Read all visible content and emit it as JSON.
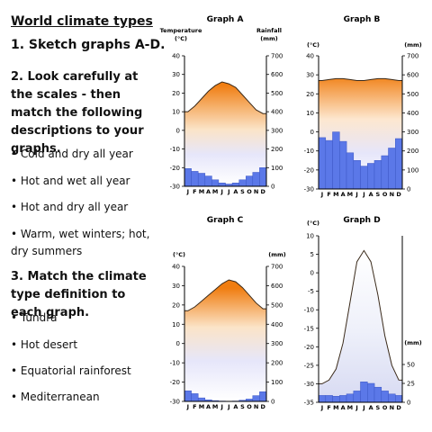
{
  "left": {
    "title": "World climate types",
    "step1": "1. Sketch graphs A-D.",
    "step2": "2. Look carefully at the scales - then match the following descriptions to your graphs.",
    "descriptions": [
      "• Cold and dry all year",
      "• Hot and wet all year",
      "• Hot and dry all year",
      "• Warm, wet winters; hot, dry summers"
    ],
    "step3": "3. Match the climate type definition to each graph.",
    "types": [
      "• Tundra",
      "• Hot desert",
      "• Equatorial rainforest",
      "• Mediterranean"
    ]
  },
  "chart_data": [
    {
      "type": "area",
      "title": "Graph A",
      "ylabel": "Temperature (°C)",
      "y2label": "Rainfall (mm)",
      "categories": [
        "J",
        "F",
        "M",
        "A",
        "M",
        "J",
        "J",
        "A",
        "S",
        "O",
        "N",
        "D"
      ],
      "ylim": [
        -30,
        40
      ],
      "y2lim": [
        0,
        700
      ],
      "y_ticks": [
        "40",
        "30",
        "20",
        "10",
        "0",
        "-10",
        "-20",
        "-30"
      ],
      "y2_ticks": [
        "700",
        "600",
        "500",
        "400",
        "300",
        "200",
        "100",
        "0"
      ],
      "series": [
        {
          "kind": "temperature",
          "values": [
            10,
            13,
            17,
            21,
            24,
            26,
            25,
            23,
            19,
            15,
            11,
            9
          ]
        },
        {
          "kind": "rainfall",
          "values": [
            95,
            80,
            70,
            55,
            35,
            18,
            12,
            18,
            35,
            55,
            75,
            100
          ]
        }
      ]
    },
    {
      "type": "area",
      "title": "Graph B",
      "ylabel": "(°C)",
      "y2label": "(mm)",
      "categories": [
        "J",
        "F",
        "M",
        "A",
        "M",
        "J",
        "J",
        "A",
        "S",
        "O",
        "N",
        "D"
      ],
      "ylim": [
        -30,
        40
      ],
      "y2lim": [
        0,
        700
      ],
      "y_ticks": [
        "40",
        "30",
        "20",
        "10",
        "0",
        "-10",
        "-20",
        "-30"
      ],
      "y2_ticks": [
        "700",
        "600",
        "500",
        "400",
        "300",
        "200",
        "100",
        "0"
      ],
      "series": [
        {
          "kind": "temperature",
          "values": [
            27,
            27.5,
            28,
            28,
            27.5,
            27,
            27,
            27.5,
            28,
            28,
            27.5,
            27
          ]
        },
        {
          "kind": "rainfall",
          "values": [
            270,
            255,
            300,
            250,
            190,
            150,
            120,
            135,
            150,
            175,
            215,
            265
          ]
        }
      ]
    },
    {
      "type": "area",
      "title": "Graph C",
      "ylabel": "(°C)",
      "y2label": "(mm)",
      "categories": [
        "J",
        "F",
        "M",
        "A",
        "M",
        "J",
        "J",
        "A",
        "S",
        "O",
        "N",
        "D"
      ],
      "ylim": [
        -30,
        40
      ],
      "y2lim": [
        0,
        700
      ],
      "y_ticks": [
        "40",
        "30",
        "20",
        "10",
        "0",
        "-10",
        "-20",
        "-30"
      ],
      "y2_ticks": [
        "700",
        "600",
        "500",
        "400",
        "300",
        "200",
        "100",
        "0"
      ],
      "series": [
        {
          "kind": "temperature",
          "values": [
            17,
            19,
            22,
            25,
            28,
            31,
            33,
            32,
            29,
            25,
            21,
            18
          ]
        },
        {
          "kind": "rainfall",
          "values": [
            55,
            40,
            18,
            8,
            4,
            2,
            1,
            2,
            6,
            12,
            30,
            50
          ]
        }
      ]
    },
    {
      "type": "area",
      "title": "Graph D",
      "ylabel": "(°C)",
      "y2label": "(mm)",
      "categories": [
        "J",
        "F",
        "M",
        "A",
        "M",
        "J",
        "J",
        "A",
        "S",
        "O",
        "N",
        "D"
      ],
      "ylim": [
        -35,
        10
      ],
      "y2lim": [
        0,
        50
      ],
      "y_ticks": [
        "10",
        "5",
        "0",
        "-5",
        "-10",
        "-15",
        "-20",
        "-25",
        "-30",
        "-35"
      ],
      "y2_ticks": [
        "50",
        "25",
        "0"
      ],
      "series": [
        {
          "kind": "temperature",
          "values": [
            -30,
            -29,
            -26,
            -19,
            -8,
            3,
            6,
            3,
            -6,
            -17,
            -25,
            -29
          ]
        },
        {
          "kind": "rainfall",
          "values": [
            9,
            9,
            8,
            9,
            11,
            15,
            27,
            25,
            20,
            15,
            11,
            9
          ]
        }
      ]
    }
  ]
}
